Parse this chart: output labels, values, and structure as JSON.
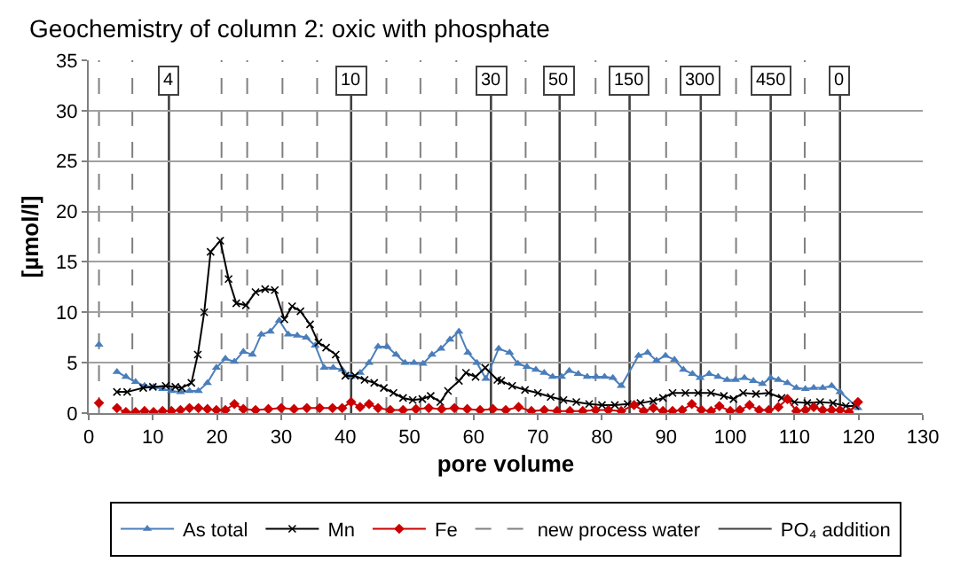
{
  "chart_data": {
    "type": "line",
    "title": "Geochemistry of column 2: oxic with phosphate",
    "xlabel": "pore volume",
    "ylabel": "[µmol/l]",
    "xlim": [
      0,
      130
    ],
    "xticks": [
      0,
      10,
      20,
      30,
      40,
      50,
      60,
      70,
      80,
      90,
      100,
      110,
      120,
      130
    ],
    "ylim": [
      0,
      35
    ],
    "yticks": [
      0,
      5,
      10,
      15,
      20,
      25,
      30,
      35
    ],
    "grid": "y",
    "legend": "bottom",
    "series": [
      {
        "name": "As total",
        "color": "#4a7ebb",
        "marker": "triangle",
        "x": [
          1.6,
          3,
          4.4,
          5.8,
          7.3,
          8.7,
          10.1,
          11.5,
          12.9,
          14.3,
          15.7,
          17.1,
          18.5,
          19.9,
          21.3,
          22.7,
          24.1,
          25.5,
          26.9,
          28.3,
          29.7,
          31.1,
          32.5,
          33.9,
          35.3,
          36.7,
          38.1,
          39.5,
          40.9,
          42.3,
          43.7,
          45.1,
          46.5,
          47.9,
          49.3,
          50.7,
          52.1,
          53.5,
          54.9,
          56.3,
          57.7,
          59.1,
          60.5,
          61.9,
          63.9,
          65.6,
          66.9,
          68.3,
          69.7,
          71.0,
          72.3,
          73.7,
          74.9,
          76.3,
          77.7,
          79.1,
          80.4,
          81.7,
          83.0,
          85.7,
          87.1,
          88.5,
          89.9,
          91.3,
          92.7,
          94.1,
          95.3,
          96.7,
          98.1,
          99.5,
          100.8,
          102.2,
          103.6,
          105.0,
          106.3,
          107.5,
          108.9,
          110.3,
          111.7,
          113.0,
          114.4,
          115.8,
          117.1,
          119.9
        ],
        "values": [
          6.8,
          null,
          4.1,
          3.6,
          3.1,
          2.7,
          2.6,
          2.4,
          2.2,
          2.1,
          2.2,
          2.2,
          3.0,
          4.5,
          5.4,
          5.1,
          6.1,
          5.8,
          7.8,
          8.1,
          9.2,
          7.8,
          7.7,
          7.5,
          6.7,
          4.5,
          4.5,
          4.3,
          3.6,
          4.0,
          5.0,
          6.6,
          6.6,
          5.8,
          5.0,
          5.0,
          4.9,
          5.8,
          6.4,
          7.3,
          8.1,
          6.0,
          5.0,
          3.4,
          6.4,
          6.0,
          4.9,
          4.6,
          4.3,
          4.0,
          3.6,
          3.6,
          4.2,
          3.9,
          3.6,
          3.6,
          3.6,
          3.5,
          2.7,
          5.7,
          6.0,
          5.2,
          5.7,
          5.3,
          4.3,
          3.9,
          3.5,
          3.9,
          3.6,
          3.3,
          3.3,
          3.5,
          3.2,
          2.9,
          3.5,
          3.3,
          3.0,
          2.5,
          2.4,
          2.5,
          2.5,
          2.7,
          2.1,
          0.5
        ]
      },
      {
        "name": "Mn",
        "color": "#000000",
        "marker": "cross",
        "x": [
          4.4,
          6,
          8.5,
          10,
          12,
          13.5,
          14.5,
          16,
          17,
          18,
          19,
          20.5,
          21.8,
          23,
          24.5,
          26,
          27.5,
          29,
          30.5,
          31.7,
          33,
          34.5,
          35.8,
          37,
          38.5,
          40,
          41.5,
          43,
          44.5,
          46,
          47.5,
          49,
          50.5,
          52,
          53.3,
          54.8,
          56,
          57.7,
          58.8,
          60.3,
          61.8,
          63.7,
          64.3,
          66,
          68,
          70,
          72,
          74,
          76,
          78,
          80,
          82,
          84,
          86,
          88,
          89.5,
          91,
          93,
          95,
          97,
          99,
          100.5,
          102,
          104,
          106,
          108,
          110,
          112,
          114,
          116,
          118,
          119.5
        ],
        "values": [
          2.1,
          2.1,
          2.5,
          2.6,
          2.7,
          2.6,
          2.5,
          3.0,
          5.8,
          10.0,
          16.0,
          17.1,
          13.3,
          10.9,
          10.7,
          12.0,
          12.3,
          12.2,
          9.3,
          10.6,
          10.1,
          8.8,
          7.0,
          6.5,
          5.8,
          3.7,
          3.7,
          3.3,
          3.0,
          2.5,
          2.0,
          1.5,
          1.3,
          1.4,
          1.7,
          1.1,
          2.2,
          3.2,
          4.0,
          3.6,
          4.5,
          3.3,
          3.2,
          2.7,
          2.3,
          2.0,
          1.6,
          1.3,
          1.1,
          0.9,
          0.8,
          0.8,
          0.9,
          1.0,
          1.2,
          1.5,
          2.0,
          2.0,
          2.0,
          2.0,
          1.7,
          1.4,
          2.0,
          1.9,
          2.0,
          1.5,
          1.1,
          1.0,
          1.1,
          1.0,
          0.7,
          0.7
        ]
      },
      {
        "name": "Fe",
        "color": "#cc0000",
        "marker": "diamond",
        "x": [
          1.6,
          3,
          4.4,
          5.8,
          7.3,
          8.7,
          10.1,
          11.5,
          12.9,
          14.3,
          15.7,
          17.1,
          18.5,
          19.9,
          21.3,
          22.7,
          24.1,
          26,
          28,
          30,
          32,
          34,
          36,
          38,
          39.5,
          40.9,
          42.3,
          43.7,
          45.1,
          47,
          49,
          51,
          53,
          55,
          57,
          59,
          61,
          63,
          65,
          67,
          69,
          71,
          73,
          75,
          77,
          79,
          81,
          83,
          85,
          86.5,
          88,
          89.5,
          91,
          92.5,
          94,
          95.5,
          97,
          98.3,
          100,
          101.5,
          103,
          104.5,
          106,
          107.5,
          108.9,
          110.3,
          111.7,
          113,
          114.4,
          115.8,
          117.1,
          118.5,
          119.9
        ],
        "values": [
          1.0,
          null,
          0.5,
          0.1,
          0.1,
          0.2,
          0.1,
          0.2,
          0.2,
          0.3,
          0.5,
          0.5,
          0.4,
          0.3,
          0.3,
          0.9,
          0.4,
          0.3,
          0.4,
          0.5,
          0.4,
          0.5,
          0.5,
          0.5,
          0.5,
          1.1,
          0.6,
          0.9,
          0.5,
          0.3,
          0.3,
          0.4,
          0.5,
          0.4,
          0.5,
          0.4,
          0.3,
          0.4,
          0.3,
          0.6,
          0.2,
          0.3,
          0.2,
          0.2,
          0.2,
          0.3,
          0.3,
          0.2,
          0.8,
          0.2,
          0.5,
          0.2,
          0.2,
          0.3,
          0.9,
          0.3,
          0.2,
          0.7,
          0.2,
          0.3,
          0.8,
          0.3,
          0.3,
          0.6,
          1.4,
          0.2,
          0.3,
          0.6,
          0.3,
          0.3,
          0.3,
          0.1,
          1.1
        ]
      }
    ],
    "ref_lines": [
      {
        "axis": "x",
        "value": 1.6,
        "label": "new process water",
        "line_style": "dashed",
        "color": "#808080"
      },
      {
        "axis": "x",
        "value": 6.8,
        "line_style": "dashed",
        "color": "#808080"
      },
      {
        "axis": "x",
        "value": 20.7,
        "line_style": "dashed",
        "color": "#808080"
      },
      {
        "axis": "x",
        "value": 24.7,
        "line_style": "dashed",
        "color": "#808080"
      },
      {
        "axis": "x",
        "value": 30.2,
        "line_style": "dashed",
        "color": "#808080"
      },
      {
        "axis": "x",
        "value": 35.6,
        "line_style": "dashed",
        "color": "#808080"
      },
      {
        "axis": "x",
        "value": 46.4,
        "line_style": "dashed",
        "color": "#808080"
      },
      {
        "axis": "x",
        "value": 51.7,
        "line_style": "dashed",
        "color": "#808080"
      },
      {
        "axis": "x",
        "value": 57.3,
        "line_style": "dashed",
        "color": "#808080"
      },
      {
        "axis": "x",
        "value": 68.1,
        "line_style": "dashed",
        "color": "#808080"
      },
      {
        "axis": "x",
        "value": 79,
        "line_style": "dashed",
        "color": "#808080"
      },
      {
        "axis": "x",
        "value": 90,
        "line_style": "dashed",
        "color": "#808080"
      },
      {
        "axis": "x",
        "value": 100.9,
        "line_style": "dashed",
        "color": "#808080"
      },
      {
        "axis": "x",
        "value": 111.6,
        "line_style": "dashed",
        "color": "#808080"
      },
      {
        "axis": "x",
        "value": 12.5,
        "label": "PO₄ addition",
        "line_style": "solid",
        "color": "#404040"
      },
      {
        "axis": "x",
        "value": 40.9,
        "line_style": "solid",
        "color": "#404040"
      },
      {
        "axis": "x",
        "value": 62.7,
        "line_style": "solid",
        "color": "#404040"
      },
      {
        "axis": "x",
        "value": 73.4,
        "line_style": "solid",
        "color": "#404040"
      },
      {
        "axis": "x",
        "value": 84.3,
        "line_style": "solid",
        "color": "#404040"
      },
      {
        "axis": "x",
        "value": 95.4,
        "line_style": "solid",
        "color": "#404040"
      },
      {
        "axis": "x",
        "value": 106.3,
        "line_style": "solid",
        "color": "#404040"
      },
      {
        "axis": "x",
        "value": 117.1,
        "line_style": "solid",
        "color": "#404040"
      }
    ],
    "annotations": [
      {
        "text": "4",
        "x": 12.5,
        "y": 33
      },
      {
        "text": "10",
        "x": 40.9,
        "y": 33
      },
      {
        "text": "30",
        "x": 62.7,
        "y": 33
      },
      {
        "text": "50",
        "x": 73.4,
        "y": 33
      },
      {
        "text": "150",
        "x": 84.3,
        "y": 33
      },
      {
        "text": "300",
        "x": 95.4,
        "y": 33
      },
      {
        "text": "450",
        "x": 106.3,
        "y": 33
      },
      {
        "text": "0",
        "x": 117.1,
        "y": 33
      }
    ]
  }
}
